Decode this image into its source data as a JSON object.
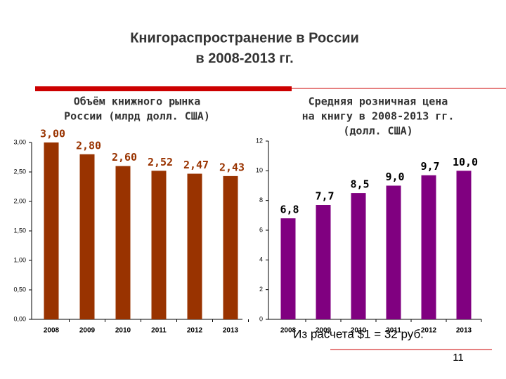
{
  "slide": {
    "title_lines": [
      "Книгораспространение в России",
      "в 2008-2013 гг."
    ],
    "note": "Из расчета $1 = 32 руб.",
    "page_number": "11"
  },
  "chart_data": [
    {
      "type": "bar",
      "title_lines": [
        "Объём книжного рынка",
        "России (млрд долл. США)"
      ],
      "categories": [
        "2008",
        "2009",
        "2010",
        "2011",
        "2012",
        "2013"
      ],
      "values": [
        3.0,
        2.8,
        2.6,
        2.52,
        2.47,
        2.43
      ],
      "value_labels": [
        "3,00",
        "2,80",
        "2,60",
        "2,52",
        "2,47",
        "2,43"
      ],
      "color": "#993300",
      "label_color": "#993300",
      "ylim": [
        0,
        3
      ],
      "yticks": [
        {
          "value": 0,
          "label": "0,00"
        },
        {
          "value": 0.5,
          "label": "0,50"
        },
        {
          "value": 1,
          "label": "1,00"
        },
        {
          "value": 1.5,
          "label": "1,50"
        },
        {
          "value": 2,
          "label": "2,00"
        },
        {
          "value": 2.5,
          "label": "2,50"
        },
        {
          "value": 3,
          "label": "3,00"
        }
      ]
    },
    {
      "type": "bar",
      "title_lines": [
        "Средняя розничная цена",
        "на книгу в 2008-2013 гг.",
        "(долл. США)"
      ],
      "categories": [
        "2008",
        "2009",
        "2010",
        "2011",
        "2012",
        "2013"
      ],
      "values": [
        6.8,
        7.7,
        8.5,
        9.0,
        9.7,
        10.0
      ],
      "value_labels": [
        "6,8",
        "7,7",
        "8,5",
        "9,0",
        "9,7",
        "10,0"
      ],
      "color": "#800080",
      "label_color": "#000000",
      "ylim": [
        0,
        12
      ],
      "yticks": [
        0,
        2,
        4,
        6,
        8,
        10,
        12
      ]
    }
  ]
}
